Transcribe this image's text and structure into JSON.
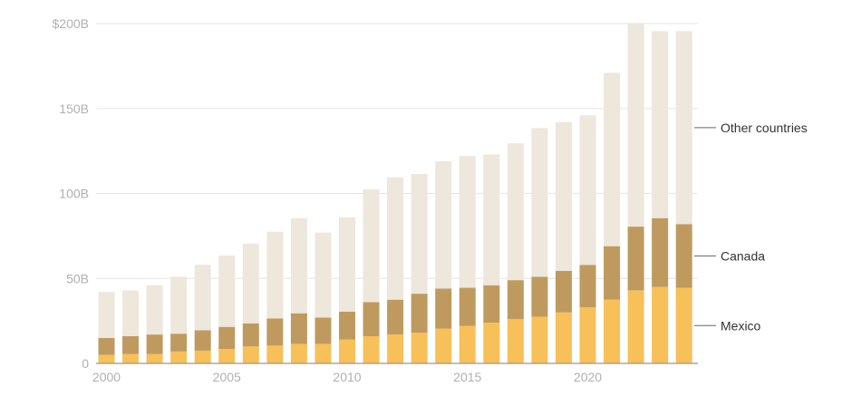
{
  "chart_data": {
    "type": "bar",
    "stacked": true,
    "categories": [
      "2000",
      "2001",
      "2002",
      "2003",
      "2004",
      "2005",
      "2006",
      "2007",
      "2008",
      "2009",
      "2010",
      "2011",
      "2012",
      "2013",
      "2014",
      "2015",
      "2016",
      "2017",
      "2018",
      "2019",
      "2020",
      "2021",
      "2022",
      "2023",
      "2024"
    ],
    "series": [
      {
        "name": "Mexico",
        "color": "#f7c059",
        "values": [
          5,
          5.5,
          5.5,
          7,
          7.5,
          8.5,
          10,
          10.5,
          11.5,
          11.5,
          14,
          16,
          17,
          18,
          20.5,
          22,
          24,
          26,
          27.5,
          30,
          33,
          37.5,
          43,
          45,
          44.5
        ]
      },
      {
        "name": "Canada",
        "color": "#bf9a5f",
        "values": [
          10,
          10.5,
          11.5,
          10.5,
          12,
          13,
          13.5,
          16,
          18,
          15.5,
          16.5,
          20,
          20.5,
          23,
          23.5,
          22.5,
          22,
          23,
          23.5,
          24.5,
          25,
          31.5,
          37.5,
          40.5,
          37.5
        ]
      },
      {
        "name": "Other countries",
        "color": "#ede7dc",
        "values": [
          27,
          27,
          29,
          33.5,
          38.5,
          42,
          47,
          51,
          56,
          50,
          55.5,
          66.5,
          72,
          70.5,
          75,
          77.5,
          77,
          80.5,
          87.5,
          87.5,
          88,
          102,
          119.5,
          110,
          113.5
        ]
      }
    ],
    "y_ticks": [
      {
        "value": 0,
        "label": "0"
      },
      {
        "value": 50,
        "label": "50B"
      },
      {
        "value": 100,
        "label": "100B"
      },
      {
        "value": 150,
        "label": "150B"
      },
      {
        "value": 200,
        "label": "$200B"
      }
    ],
    "x_ticks": [
      {
        "category": "2000",
        "label": "2000"
      },
      {
        "category": "2005",
        "label": "2005"
      },
      {
        "category": "2010",
        "label": "2010"
      },
      {
        "category": "2015",
        "label": "2015"
      },
      {
        "category": "2020",
        "label": "2020"
      }
    ],
    "ylim": [
      0,
      200
    ],
    "grid": true,
    "legend_placement": "right, inline at last bar",
    "title": "",
    "xlabel": "",
    "ylabel": ""
  }
}
